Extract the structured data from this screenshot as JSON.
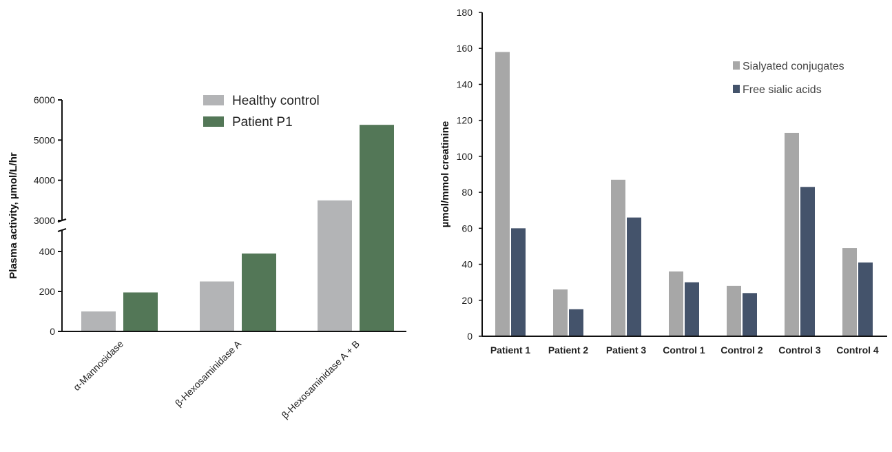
{
  "chart_data": [
    {
      "type": "bar",
      "ylabel": "Plasma activity, µmol/L/hr",
      "categories": [
        "α-Mannosidase",
        "β-Hexosaminidase A",
        "β-Hexosaminidase A + B"
      ],
      "series": [
        {
          "name": "Healthy control",
          "values": [
            100,
            250,
            3500
          ],
          "color": "#b3b4b6"
        },
        {
          "name": "Patient P1",
          "values": [
            195,
            390,
            5380
          ],
          "color": "#537757"
        }
      ],
      "axis_break": {
        "lower": [
          0,
          400
        ],
        "upper": [
          3000,
          6000
        ]
      },
      "yticks_lower": [
        "0",
        "200",
        "400"
      ],
      "yticks_upper": [
        "3000",
        "4000",
        "5000",
        "6000"
      ],
      "legend_position": "top-center"
    },
    {
      "type": "bar",
      "ylabel": "µmol/mmol creatinine",
      "categories": [
        "Patient 1",
        "Patient 2",
        "Patient 3",
        "Control 1",
        "Control 2",
        "Control 3",
        "Control 4"
      ],
      "series": [
        {
          "name": "Sialyated conjugates",
          "values": [
            158,
            26,
            87,
            36,
            28,
            113,
            49
          ],
          "color": "#a7a7a7"
        },
        {
          "name": "Free sialic acids",
          "values": [
            60,
            15,
            66,
            30,
            24,
            83,
            41
          ],
          "color": "#44536b"
        }
      ],
      "ylim": [
        0,
        180
      ],
      "yticks": [
        "0",
        "20",
        "40",
        "60",
        "80",
        "100",
        "120",
        "140",
        "160",
        "180"
      ],
      "legend_position": "top-right"
    }
  ]
}
